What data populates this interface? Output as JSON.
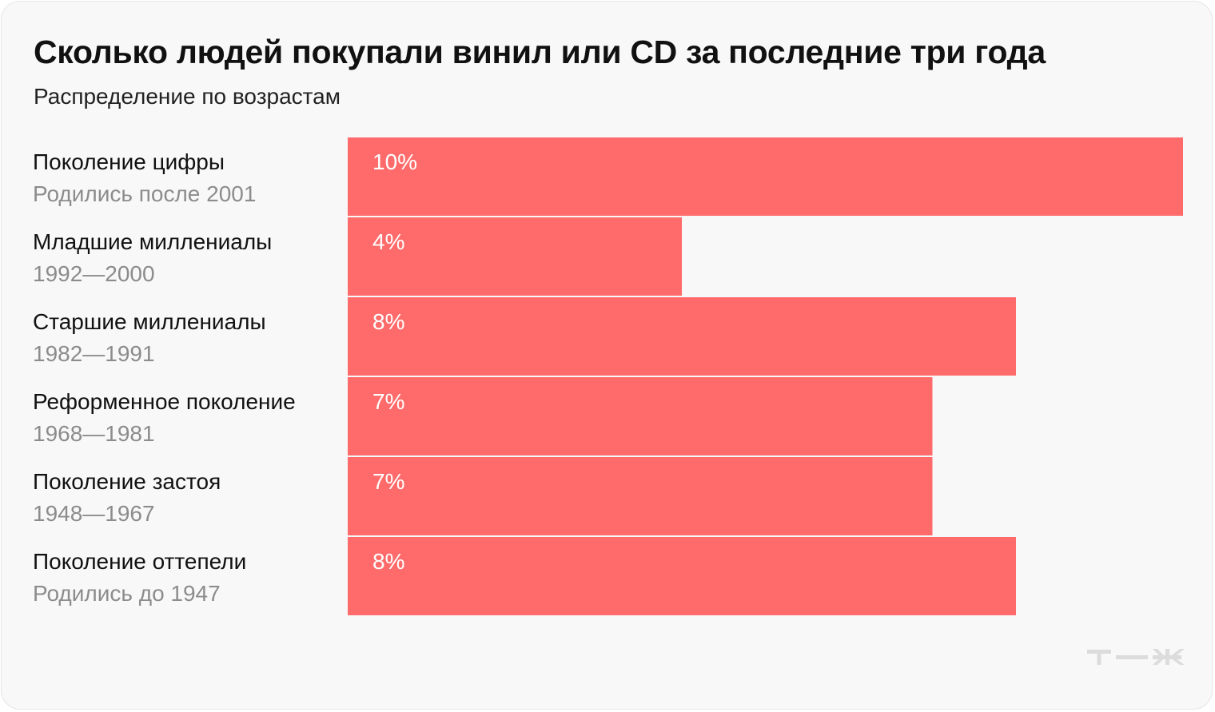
{
  "chart_data": {
    "type": "bar",
    "orientation": "horizontal",
    "title": "Сколько людей покупали винил или CD за последние три года",
    "subtitle": "Распределение по возрастам",
    "categories": [
      {
        "label": "Поколение цифры",
        "sublabel": "Родились после 2001"
      },
      {
        "label": "Младшие миллениалы",
        "sublabel": "1992—2000"
      },
      {
        "label": "Старшие миллениалы",
        "sublabel": "1982—1991"
      },
      {
        "label": "Реформенное поколение",
        "sublabel": "1968—1981"
      },
      {
        "label": "Поколение застоя",
        "sublabel": "1948—1967"
      },
      {
        "label": "Поколение оттепели",
        "sublabel": "Родились до 1947"
      }
    ],
    "values": [
      10,
      4,
      8,
      7,
      7,
      8
    ],
    "value_labels": [
      "10%",
      "4%",
      "8%",
      "7%",
      "7%",
      "8%"
    ],
    "unit": "%",
    "xlim": [
      0,
      10
    ],
    "grid": false,
    "legend": "none",
    "bar_color": "#ff6b6b",
    "label_color": "#111111",
    "sublabel_color": "#8c8c8c",
    "value_label_color": "#ffffff"
  },
  "branding": {
    "logo_icon": "tzh-logo-icon",
    "logo_text": "Т—Ж",
    "logo_color": "#dcdcdc"
  }
}
